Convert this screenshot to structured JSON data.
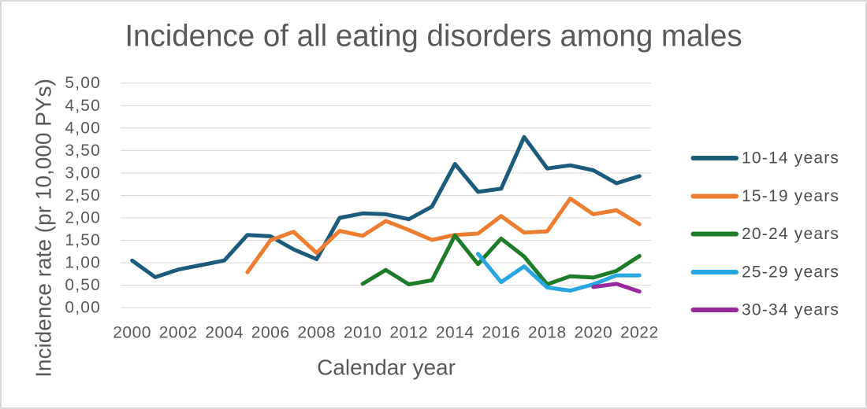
{
  "chart_data": {
    "type": "line",
    "title": "Incidence of all eating disorders among males",
    "xlabel": "Calendar year",
    "ylabel": "Incidence rate (pr 10,000 PYs)",
    "x_ticks": [
      "2000",
      "2002",
      "2004",
      "2006",
      "2008",
      "2010",
      "2012",
      "2014",
      "2016",
      "2018",
      "2020",
      "2022"
    ],
    "y_tick_labels": [
      "0,00",
      "0,50",
      "1,00",
      "1,50",
      "2,00",
      "2,50",
      "3,00",
      "3,50",
      "4,00",
      "4,50",
      "5,00"
    ],
    "ylim": [
      0,
      5
    ],
    "y_tick_step": 0.5,
    "x_range": [
      2000,
      2022
    ],
    "grid": true,
    "legend_position": "right",
    "decimal_separator": ",",
    "colors": {
      "gridline": "#D9D9D9",
      "frame_border": "#D9D9D9",
      "title_text": "#595959",
      "axis_text": "#595959",
      "legend_text": "#4d4d4d"
    },
    "series": [
      {
        "name": "10-14 years",
        "color": "#1D5B7A",
        "years": [
          2000,
          2001,
          2002,
          2003,
          2004,
          2005,
          2006,
          2007,
          2008,
          2009,
          2010,
          2011,
          2012,
          2013,
          2014,
          2015,
          2016,
          2017,
          2018,
          2019,
          2020,
          2021,
          2022
        ],
        "values": [
          1.05,
          0.68,
          0.85,
          0.95,
          1.05,
          1.62,
          1.59,
          1.3,
          1.08,
          2.0,
          2.1,
          2.08,
          1.97,
          2.25,
          3.2,
          2.58,
          2.65,
          3.8,
          3.1,
          3.17,
          3.06,
          2.77,
          2.93
        ]
      },
      {
        "name": "15-19 years",
        "color": "#ED7D31",
        "years": [
          2005,
          2006,
          2007,
          2008,
          2009,
          2010,
          2011,
          2012,
          2013,
          2014,
          2015,
          2016,
          2017,
          2018,
          2019,
          2020,
          2021,
          2022
        ],
        "values": [
          0.79,
          1.5,
          1.69,
          1.22,
          1.71,
          1.6,
          1.93,
          1.73,
          1.51,
          1.62,
          1.65,
          2.04,
          1.67,
          1.7,
          2.43,
          2.08,
          2.17,
          1.86
        ]
      },
      {
        "name": "20-24 years",
        "color": "#1E7B28",
        "years": [
          2010,
          2011,
          2012,
          2013,
          2014,
          2015,
          2016,
          2017,
          2018,
          2019,
          2020,
          2021,
          2022
        ],
        "values": [
          0.53,
          0.84,
          0.52,
          0.61,
          1.61,
          0.97,
          1.54,
          1.14,
          0.52,
          0.7,
          0.67,
          0.82,
          1.15
        ]
      },
      {
        "name": "25-29 years",
        "color": "#27A6DF",
        "years": [
          2015,
          2016,
          2017,
          2018,
          2019,
          2020,
          2021,
          2022
        ],
        "values": [
          1.2,
          0.57,
          0.92,
          0.45,
          0.38,
          0.52,
          0.72,
          0.72
        ]
      },
      {
        "name": "30-34 years",
        "color": "#9C28A0",
        "years": [
          2020,
          2021,
          2022
        ],
        "values": [
          0.46,
          0.53,
          0.36
        ]
      }
    ]
  }
}
